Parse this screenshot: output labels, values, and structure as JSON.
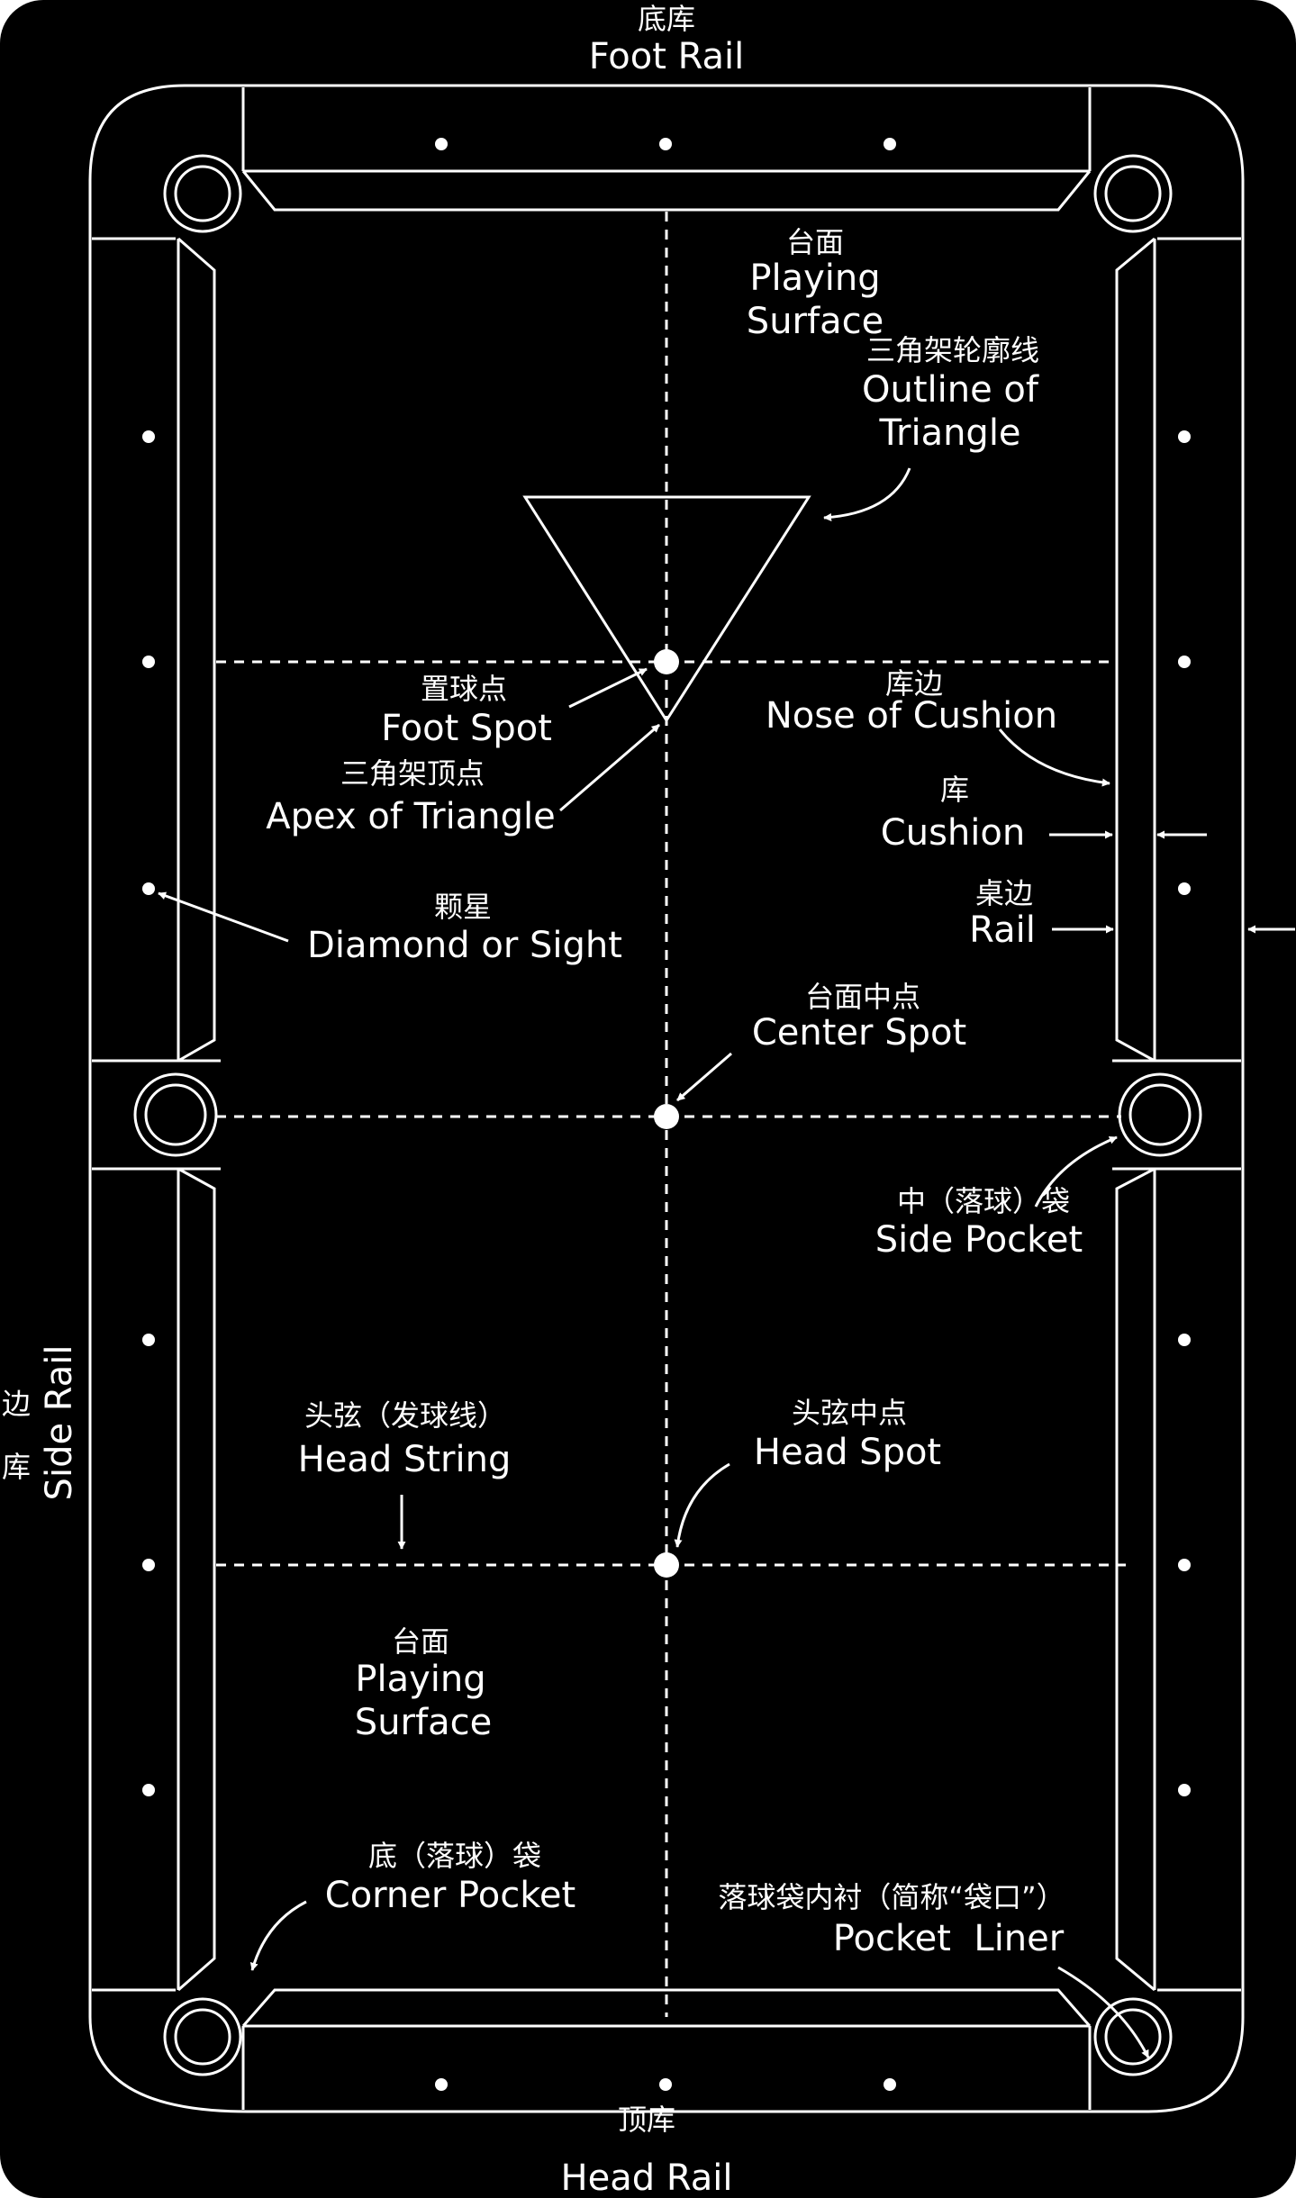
{
  "colors": {
    "background": "#000000",
    "line": "#ffffff",
    "page": "#ffffff"
  },
  "labels": {
    "foot_rail_cn": "底库",
    "foot_rail_en": "Foot Rail",
    "playing_surface_top_cn": "台面",
    "playing_surface_top_en1": "Playing",
    "playing_surface_top_en2": "Surface",
    "outline_triangle_cn": "三角架轮廓线",
    "outline_triangle_en1": "Outline of",
    "outline_triangle_en2": "Triangle",
    "foot_spot_cn": "置球点",
    "foot_spot_en": "Foot Spot",
    "apex_cn": "三角架顶点",
    "apex_en": "Apex of Triangle",
    "nose_cushion_cn": "库边",
    "nose_cushion_en": "Nose of Cushion",
    "cushion_cn": "库",
    "cushion_en": "Cushion",
    "diamond_cn": "颗星",
    "diamond_en": "Diamond or Sight",
    "rail_cn": "桌边",
    "rail_en": "Rail",
    "center_spot_cn": "台面中点",
    "center_spot_en": "Center Spot",
    "side_pocket_cn": "中（落球）袋",
    "side_pocket_en": "Side Pocket",
    "side_rail_cn1": "边",
    "side_rail_cn2": "库",
    "side_rail_en": "Side Rail",
    "head_string_cn": "头弦（发球线）",
    "head_string_en": "Head String",
    "head_spot_cn": "头弦中点",
    "head_spot_en": "Head Spot",
    "playing_surface_bottom_cn": "台面",
    "playing_surface_bottom_en1": "Playing",
    "playing_surface_bottom_en2": "Surface",
    "corner_pocket_cn": "底（落球）袋",
    "corner_pocket_en": "Corner Pocket",
    "pocket_liner_cn": "落球袋内衬（简称“袋口”）",
    "pocket_liner_en": "Pocket  Liner",
    "head_rail_cn": "顶库",
    "head_rail_en": "Head Rail"
  }
}
